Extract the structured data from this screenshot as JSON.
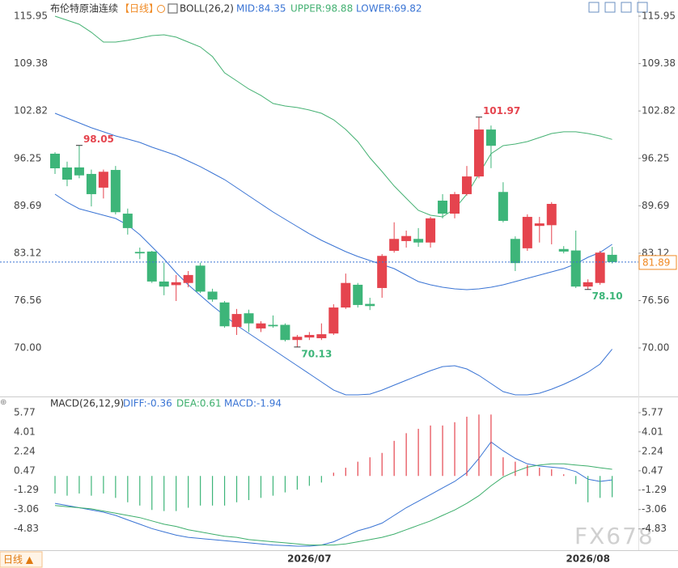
{
  "chart_data": [
    {
      "type": "candlestick",
      "title": "布伦特原油连续",
      "period": "【日线】",
      "indicator": "BOLL(26,2)",
      "categories": [
        null,
        null,
        null,
        null,
        null,
        null,
        null,
        null,
        null,
        null,
        null,
        null,
        null,
        null,
        null,
        null,
        null,
        null,
        null,
        null,
        null,
        "2026/07",
        null,
        null,
        null,
        null,
        null,
        null,
        null,
        null,
        null,
        null,
        null,
        null,
        null,
        null,
        null,
        null,
        null,
        null,
        null,
        null,
        null,
        null,
        "2026/08",
        null,
        null
      ],
      "ohlc": {
        "open": [
          96.9,
          94.99,
          95.0,
          94.1,
          92.2,
          94.65,
          88.6,
          83.3,
          83.35,
          79.2,
          78.7,
          79.0,
          81.4,
          77.8,
          76.3,
          72.9,
          74.8,
          72.7,
          73.2,
          73.2,
          71.1,
          71.45,
          71.35,
          72.0,
          75.6,
          78.75,
          76.1,
          78.3,
          83.45,
          84.8,
          85.1,
          84.6,
          90.4,
          88.6,
          91.3,
          93.75,
          100.25,
          91.6,
          85.1,
          83.8,
          86.9,
          87.0,
          83.7,
          83.5,
          78.5,
          79.0,
          82.9
        ],
        "high": [
          97.1,
          95.8,
          98.05,
          94.7,
          94.7,
          95.2,
          89.3,
          83.9,
          83.45,
          81.8,
          80.1,
          80.65,
          81.8,
          78.2,
          76.5,
          75.4,
          75.3,
          73.7,
          74.5,
          73.4,
          71.8,
          72.2,
          73.4,
          76.05,
          80.3,
          79.0,
          76.95,
          83.0,
          87.4,
          86.25,
          86.6,
          88.15,
          91.3,
          91.6,
          95.2,
          101.97,
          100.8,
          92.95,
          85.45,
          88.5,
          88.15,
          90.2,
          84.1,
          86.25,
          79.5,
          83.45,
          84.0
        ],
        "low": [
          94.1,
          92.4,
          93.5,
          89.6,
          90.7,
          88.5,
          85.7,
          82.3,
          79.0,
          77.3,
          76.5,
          78.4,
          77.6,
          76.4,
          72.8,
          71.8,
          72.2,
          72.2,
          72.8,
          70.9,
          70.13,
          71.1,
          71.1,
          71.8,
          75.4,
          75.6,
          75.25,
          76.95,
          83.2,
          83.9,
          84.0,
          83.9,
          87.95,
          87.95,
          91.1,
          93.5,
          94.9,
          87.4,
          80.65,
          83.45,
          84.6,
          84.35,
          83.1,
          78.3,
          78.1,
          78.75,
          81.7
        ],
        "close": [
          94.88,
          93.31,
          93.9,
          91.3,
          94.4,
          88.8,
          86.6,
          83.1,
          79.2,
          78.5,
          79.1,
          80.1,
          77.8,
          76.7,
          73.0,
          74.7,
          73.4,
          73.4,
          73.0,
          71.1,
          71.55,
          71.8,
          71.9,
          75.6,
          79.0,
          75.95,
          75.8,
          82.75,
          85.1,
          85.5,
          84.6,
          87.95,
          88.6,
          91.3,
          93.75,
          100.25,
          98.0,
          87.6,
          81.75,
          88.15,
          87.25,
          89.95,
          83.35,
          78.5,
          79.1,
          83.2,
          81.89
        ]
      },
      "up_color": "#e5444e",
      "down_color": "#3db579",
      "series": [
        {
          "name": "MID:84.35",
          "color": "#3a74d4",
          "values": [
            102.5,
            101.83,
            101.16,
            100.49,
            99.93,
            99.36,
            98.92,
            98.47,
            97.8,
            97.24,
            96.67,
            95.89,
            95.11,
            94.21,
            93.31,
            92.19,
            91.07,
            89.95,
            88.83,
            87.82,
            86.81,
            85.8,
            84.91,
            84.12,
            83.34,
            82.66,
            82.1,
            81.54,
            80.98,
            80.09,
            79.19,
            78.74,
            78.41,
            78.18,
            78.07,
            78.18,
            78.41,
            78.74,
            79.19,
            79.64,
            80.09,
            80.54,
            80.98,
            81.65,
            82.55,
            83.22,
            84.35
          ]
        },
        {
          "name": "UPPER:98.88",
          "color": "#45b173",
          "values": [
            115.95,
            115.39,
            114.83,
            113.71,
            112.36,
            112.36,
            112.59,
            112.92,
            113.26,
            113.37,
            113.04,
            112.36,
            111.69,
            110.35,
            108.1,
            106.98,
            105.86,
            104.97,
            103.85,
            103.51,
            103.29,
            102.95,
            102.5,
            101.6,
            100.26,
            98.58,
            96.34,
            94.43,
            92.42,
            90.73,
            89.05,
            88.38,
            88.16,
            89.28,
            91.29,
            94.1,
            96.9,
            98.02,
            98.24,
            98.58,
            99.14,
            99.7,
            99.93,
            99.93,
            99.7,
            99.36,
            98.88
          ]
        },
        {
          "name": "LOWER:69.82",
          "color": "#3a74d4",
          "values": [
            91.29,
            90.17,
            89.28,
            88.83,
            88.38,
            87.93,
            87.04,
            85.69,
            84.01,
            82.33,
            80.42,
            78.74,
            77.29,
            75.83,
            74.48,
            73.14,
            72.02,
            70.9,
            69.78,
            68.66,
            67.54,
            66.42,
            65.3,
            64.17,
            63.5,
            63.5,
            63.61,
            64.17,
            64.85,
            65.52,
            66.19,
            66.86,
            67.42,
            67.54,
            67.09,
            66.19,
            65.07,
            63.95,
            63.5,
            63.5,
            63.73,
            64.29,
            64.96,
            65.74,
            66.64,
            67.76,
            69.82
          ]
        }
      ],
      "ylim": [
        63.28,
        117.29
      ],
      "yticks": [
        115.95,
        109.38,
        102.82,
        96.25,
        89.69,
        83.12,
        76.56,
        {
          "value": 70,
          "label": "70.00"
        }
      ],
      "last_price": 81.89,
      "last_price_color": "#f08a24",
      "annotations": [
        {
          "x": 2,
          "value": 98.05,
          "color": "#e5444e"
        },
        {
          "x": 35,
          "value": 101.97,
          "color": "#e5444e"
        },
        {
          "x": 20,
          "value": 70.13,
          "color": "#3db579"
        },
        {
          "x": 44,
          "value": 78.1,
          "label": "78.10",
          "color": "#3db579"
        }
      ],
      "grid": false
    },
    {
      "type": "macd",
      "title": "MACD(26,12,9)",
      "series": [
        {
          "name": "DIFF:-0.36",
          "type": "line",
          "color": "#3a74d4",
          "values": [
            -2.5,
            -2.7,
            -2.9,
            -3.1,
            -3.3,
            -3.6,
            -4.0,
            -4.4,
            -4.8,
            -5.1,
            -5.4,
            -5.6,
            -5.7,
            -5.8,
            -5.9,
            -6.0,
            -6.1,
            -6.2,
            -6.3,
            -6.35,
            -6.4,
            -6.4,
            -6.3,
            -6.0,
            -5.5,
            -5.0,
            -4.7,
            -4.3,
            -3.6,
            -2.9,
            -2.3,
            -1.7,
            -1.1,
            -0.5,
            0.3,
            1.6,
            3.1,
            2.3,
            1.6,
            1.1,
            0.9,
            0.8,
            0.7,
            0.4,
            -0.3,
            -0.5,
            -0.36
          ]
        },
        {
          "name": "DEA:0.61",
          "type": "line",
          "color": "#3cae6b",
          "values": [
            -2.7,
            -2.8,
            -2.9,
            -3.0,
            -3.2,
            -3.4,
            -3.6,
            -3.8,
            -4.1,
            -4.4,
            -4.6,
            -4.9,
            -5.1,
            -5.3,
            -5.5,
            -5.6,
            -5.8,
            -5.9,
            -6.0,
            -6.1,
            -6.2,
            -6.3,
            -6.3,
            -6.3,
            -6.2,
            -6.0,
            -5.8,
            -5.6,
            -5.3,
            -4.9,
            -4.5,
            -4.1,
            -3.6,
            -3.1,
            -2.5,
            -1.8,
            -0.9,
            -0.1,
            0.4,
            0.8,
            1.0,
            1.1,
            1.1,
            1.0,
            0.9,
            0.75,
            0.61
          ]
        },
        {
          "name": "MACD:-1.94",
          "type": "bar",
          "color": "#3a74d4",
          "values": [
            -1.6,
            -1.8,
            -1.6,
            -1.8,
            -1.6,
            -2.0,
            -2.4,
            -2.7,
            -3.1,
            -3.2,
            -3.2,
            -2.9,
            -2.7,
            -2.7,
            -2.7,
            -2.4,
            -2.2,
            -2.0,
            -1.8,
            -1.5,
            -1.25,
            -0.9,
            -0.6,
            0.3,
            0.75,
            1.3,
            1.7,
            2.1,
            3.2,
            3.9,
            4.3,
            4.6,
            4.6,
            4.9,
            5.4,
            5.6,
            5.6,
            1.7,
            1.3,
            1.0,
            0.75,
            0.6,
            0.15,
            -0.74,
            -2.4,
            -2.0,
            -1.94
          ]
        }
      ],
      "up_color": "#e5444e",
      "down_color": "#3db579",
      "ylim": [
        -6.77,
        7.1
      ],
      "yticks": [
        5.77,
        4.01,
        2.24,
        0.47,
        -1.29,
        -3.06,
        -4.83
      ]
    }
  ],
  "watermark": "FX678",
  "period_selector": "日线 ▲"
}
